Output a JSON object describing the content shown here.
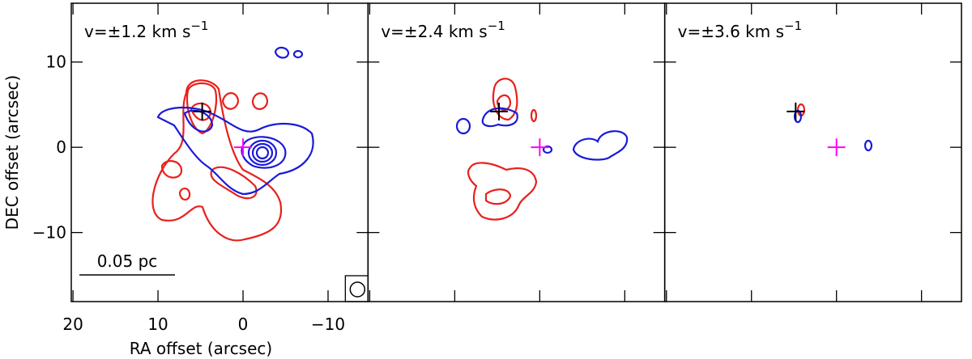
{
  "chart_data": [
    {
      "type": "contour",
      "label": "v=±1.2 km s",
      "label_sup": "−1",
      "xlabel": "RA offset (arcsec)",
      "ylabel": "DEC offset (arcsec)",
      "xlim": [
        20.2,
        -14.7
      ],
      "ylim": [
        -18.1,
        16.9
      ],
      "xticks": [
        20,
        10,
        0,
        {
          "value": -10,
          "label": "−10"
        }
      ],
      "yticks": [
        {
          "value": -10,
          "label": "−10"
        },
        0,
        10
      ],
      "scale_bar": "0.05 pc",
      "markers": [
        {
          "x": 4.8,
          "y": 4.2,
          "color": "#000000"
        },
        {
          "x": 0,
          "y": 0,
          "color": "#ff00ff"
        }
      ]
    },
    {
      "type": "contour",
      "label": "v=±2.4 km s",
      "label_sup": "−1",
      "xlim": [
        20.2,
        -14.7
      ],
      "ylim": [
        -18.1,
        16.9
      ],
      "xticks": [
        20,
        10,
        0,
        -10
      ],
      "yticks": [
        -10,
        0,
        10
      ],
      "markers": [
        {
          "x": 4.8,
          "y": 4.2,
          "color": "#000000"
        },
        {
          "x": 0,
          "y": 0,
          "color": "#ff00ff"
        }
      ]
    },
    {
      "type": "contour",
      "label": "v=±3.6 km s",
      "label_sup": "−1",
      "xlim": [
        20.2,
        -14.7
      ],
      "ylim": [
        -18.1,
        16.9
      ],
      "xticks": [
        20,
        10,
        0,
        -10
      ],
      "yticks": [
        -10,
        0,
        10
      ],
      "markers": [
        {
          "x": 4.8,
          "y": 4.2,
          "color": "#000000"
        },
        {
          "x": 0,
          "y": 0,
          "color": "#ff00ff"
        }
      ]
    }
  ]
}
